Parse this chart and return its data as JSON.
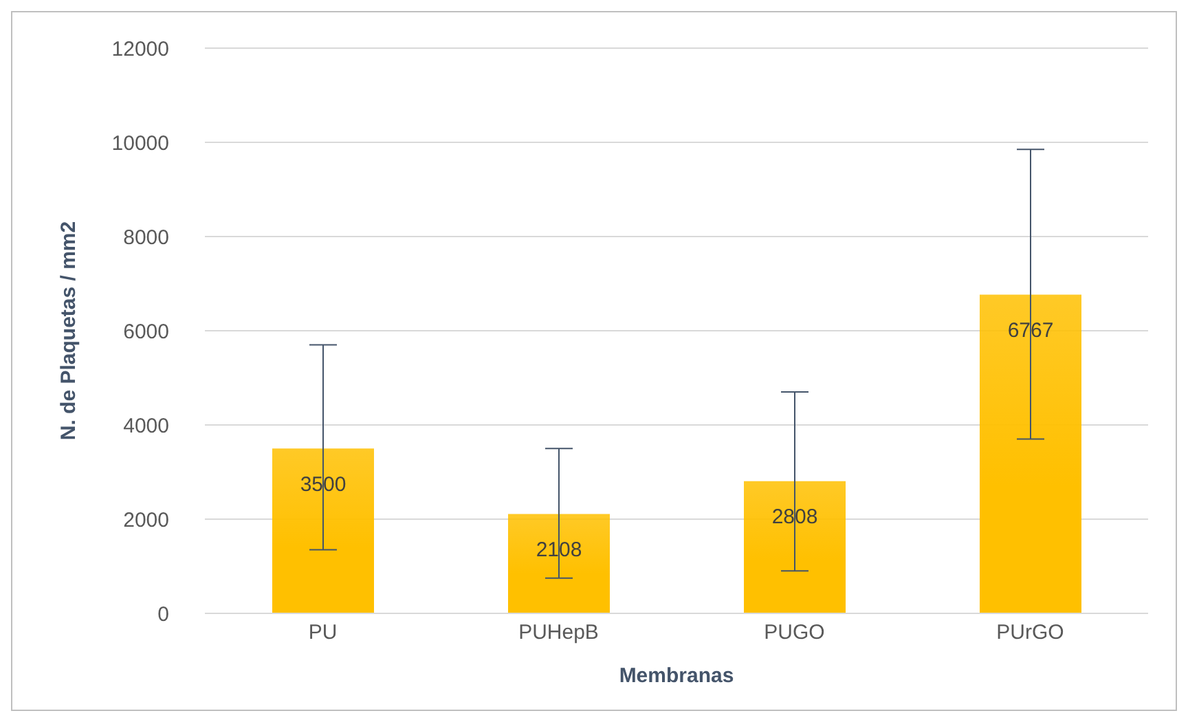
{
  "chart_data": {
    "type": "bar",
    "xlabel": "Membranas",
    "ylabel": "N. de Plaquetas / mm2",
    "categories": [
      "PU",
      "PUHepB",
      "PUGO",
      "PUrGO"
    ],
    "values": [
      3500,
      2108,
      2808,
      6767
    ],
    "color": "#ffc000",
    "errors": [
      [
        1350,
        5700
      ],
      [
        750,
        3500
      ],
      [
        900,
        4700
      ],
      [
        3700,
        9850
      ]
    ],
    "data_labels": true,
    "ylim": [
      0,
      12000
    ],
    "yticks": [
      0,
      2000,
      4000,
      6000,
      8000,
      10000,
      12000
    ],
    "grid": "y"
  }
}
